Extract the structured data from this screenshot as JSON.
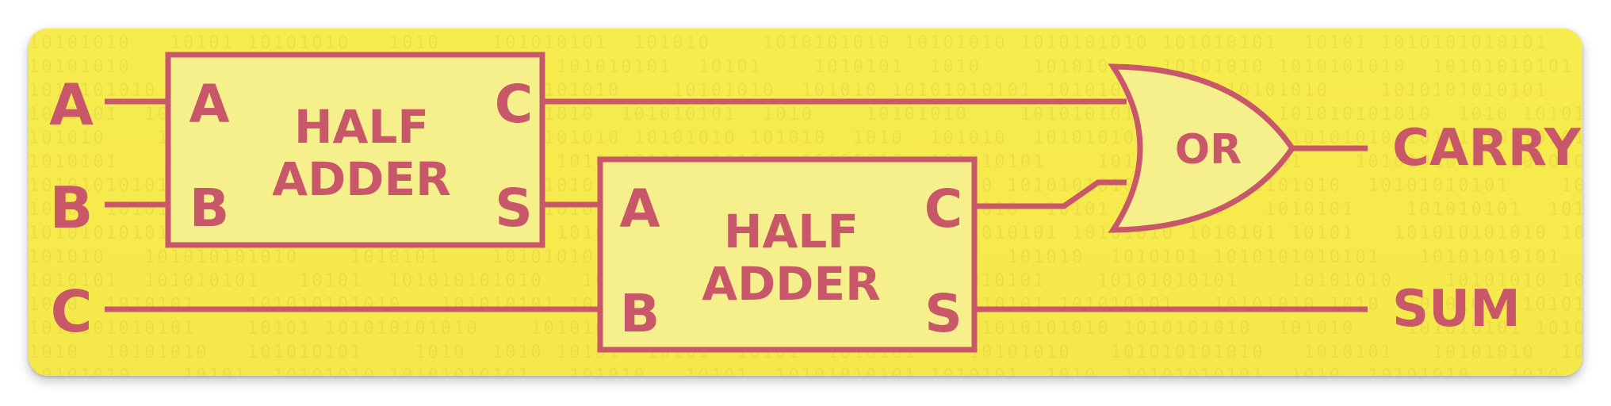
{
  "colors": {
    "background": "#f5e84a",
    "stroke": "#c8576a",
    "block_fill": "#f6f08c"
  },
  "inputs": {
    "a": "A",
    "b": "B",
    "c": "C"
  },
  "half_adder_1": {
    "title_line1": "HALF",
    "title_line2": "ADDER",
    "port_a": "A",
    "port_b": "B",
    "port_c": "C",
    "port_s": "S"
  },
  "half_adder_2": {
    "title_line1": "HALF",
    "title_line2": "ADDER",
    "port_a": "A",
    "port_b": "B",
    "port_c": "C",
    "port_s": "S"
  },
  "or_gate": {
    "label": "OR"
  },
  "outputs": {
    "carry": "CARRY",
    "sum": "SUM"
  }
}
